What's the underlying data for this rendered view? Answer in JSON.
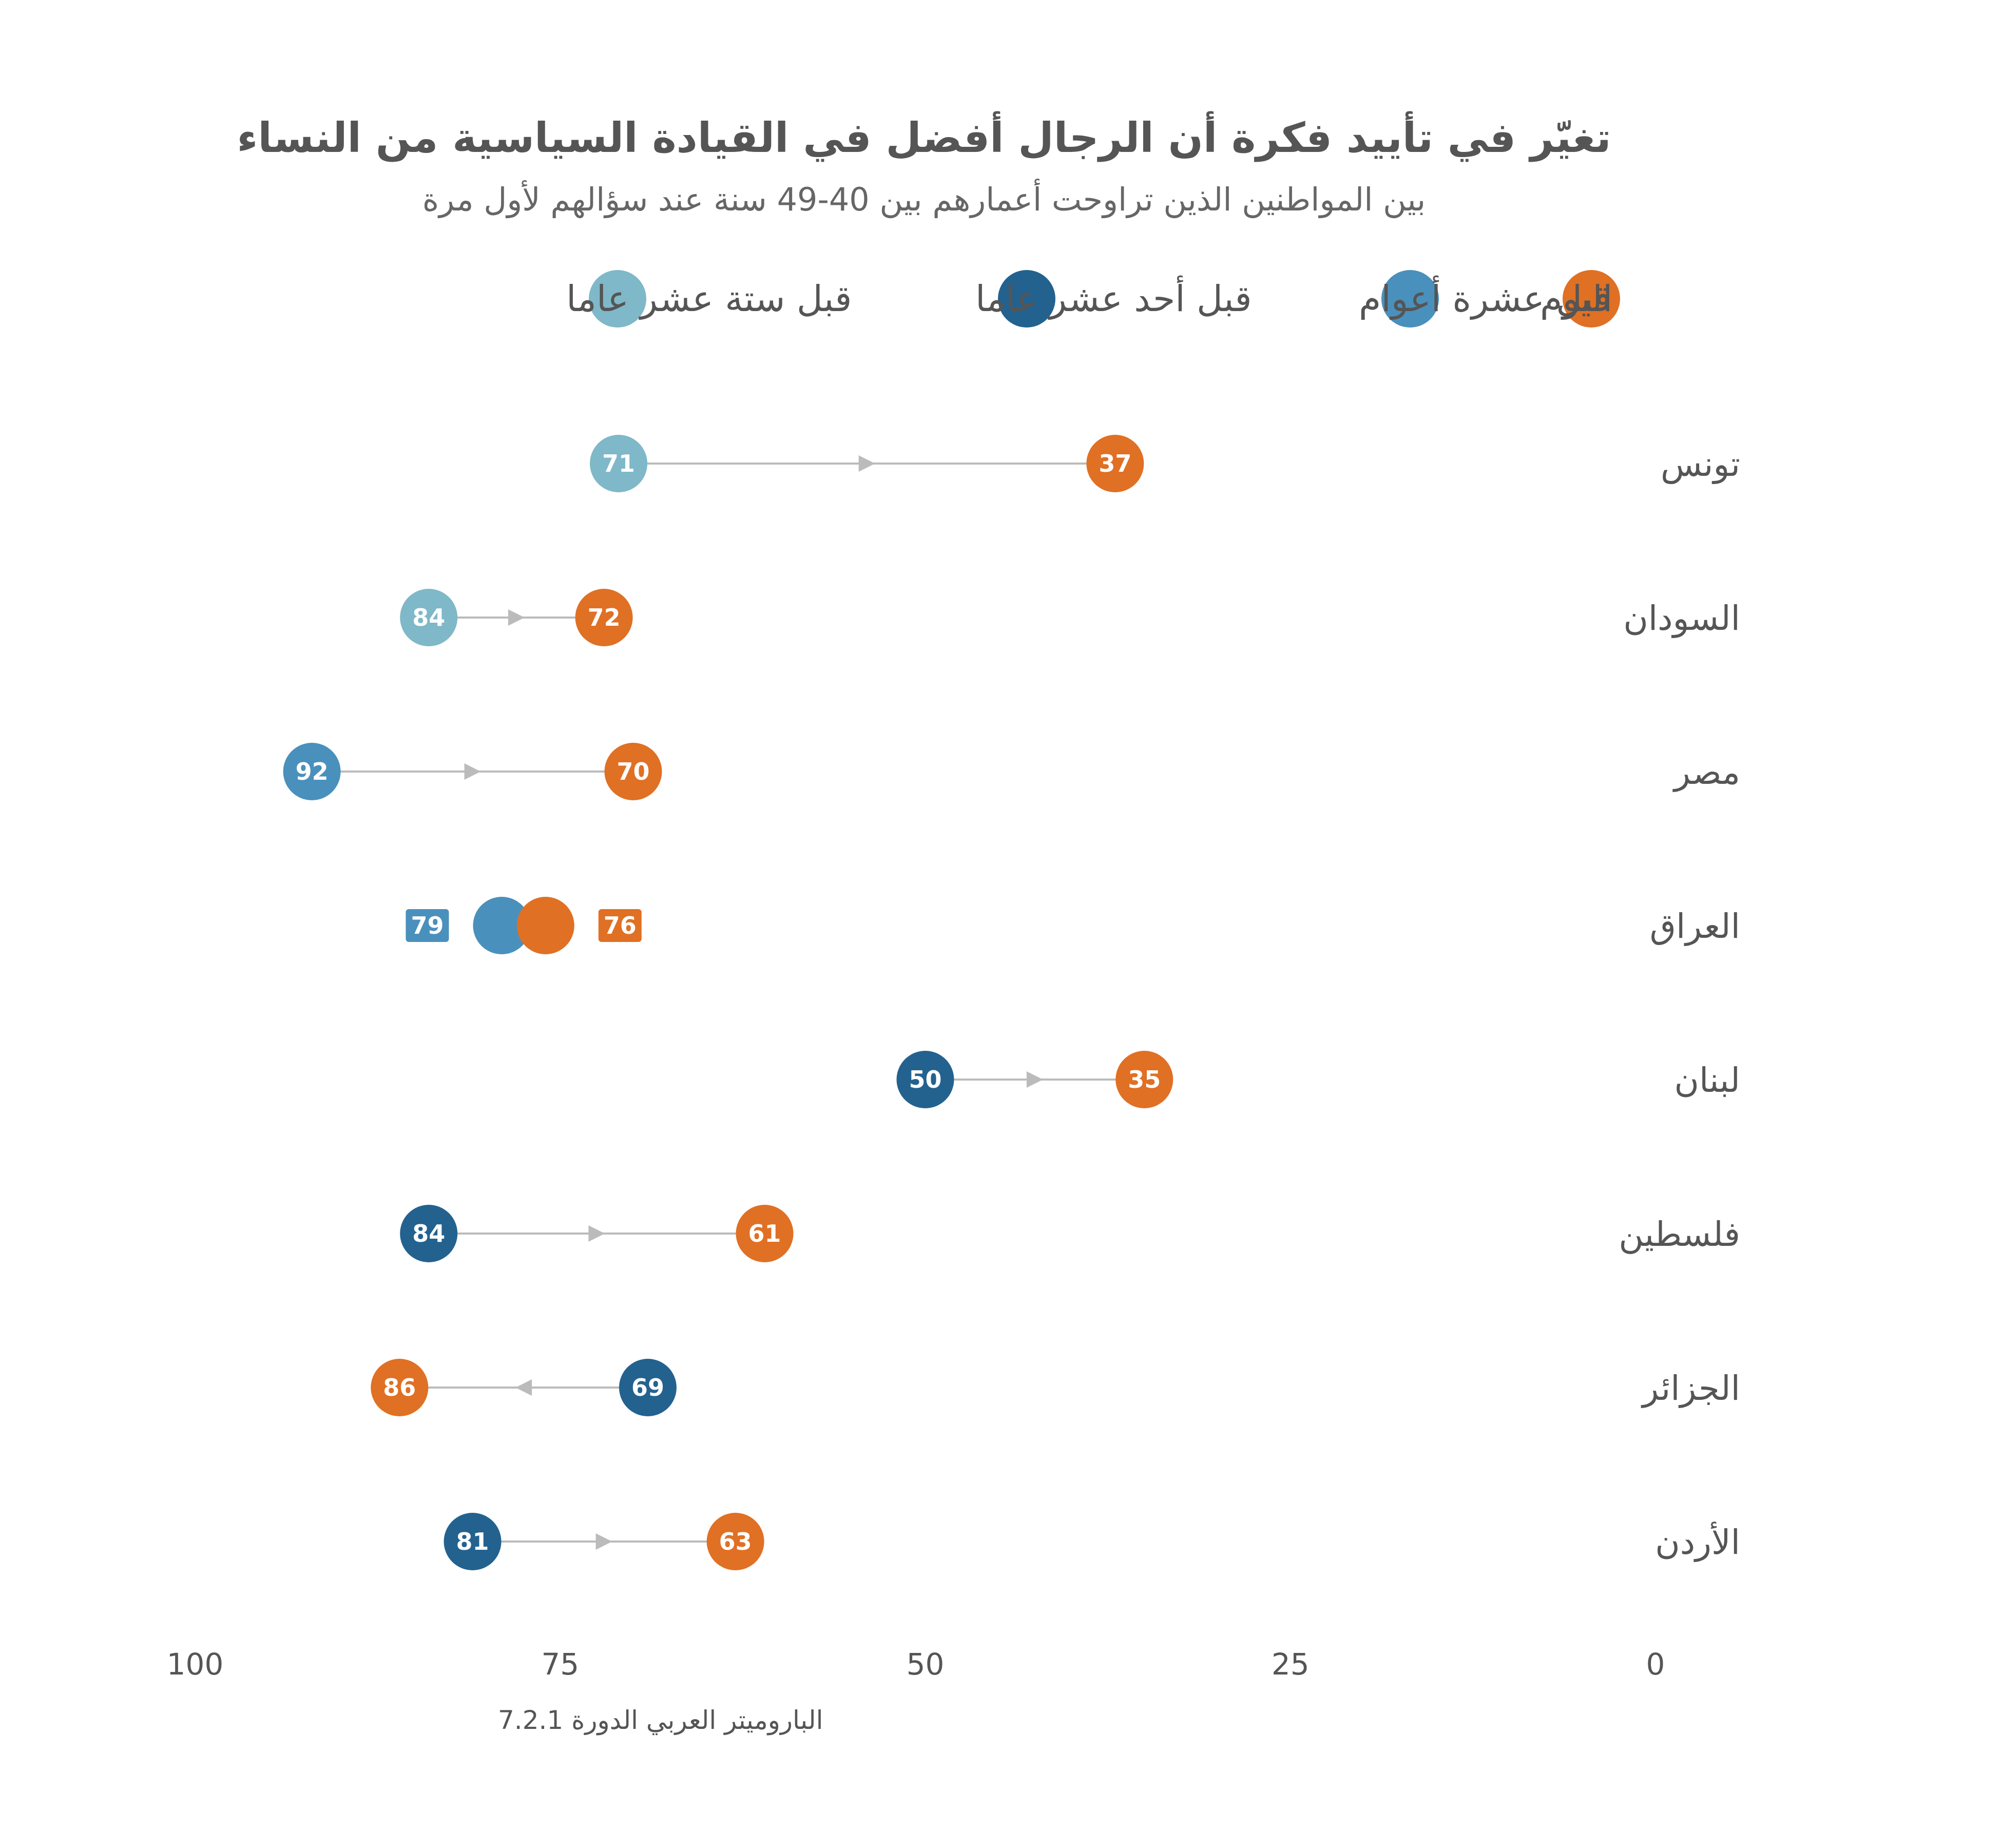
{
  "chart_data": {
    "type": "dumbbell",
    "title": "تغيّر في تأييد فكرة أن الرجال أفضل في القيادة السياسية من النساء",
    "subtitle": "بين المواطنين الذين تراوحت أعمارهم بين 40-49 سنة عند سؤالهم لأول مرة",
    "source": "الباروميتر العربي الدورة 7.2.1",
    "xlim": [
      0,
      100
    ],
    "x_reversed": true,
    "x_ticks": [
      "100",
      "75",
      "50",
      "25",
      "0"
    ],
    "x_tick_values": [
      100,
      75,
      50,
      25,
      0
    ],
    "legend_position": "top",
    "legend": [
      {
        "key": "today",
        "label": "اليوم",
        "color": "#E07024"
      },
      {
        "key": "y10",
        "label": "قبل عشرة أعوام",
        "color": "#4A90BC"
      },
      {
        "key": "y11",
        "label": "قبل أحد عشر عاما",
        "color": "#23628F"
      },
      {
        "key": "y16",
        "label": "قبل ستة عشر عاما",
        "color": "#7FB8C8"
      }
    ],
    "connector_color": "#BBBBBB",
    "rows": [
      {
        "country": "تونس",
        "start": 71,
        "end": 37,
        "start_color": "#7FB8C8"
      },
      {
        "country": "السودان",
        "start": 84,
        "end": 72,
        "start_color": "#7FB8C8"
      },
      {
        "country": "مصر",
        "start": 92,
        "end": 70,
        "start_color": "#4A90BC"
      },
      {
        "country": "العراق",
        "start": 79,
        "end": 76,
        "start_color": "#4A90BC"
      },
      {
        "country": "لبنان",
        "start": 50,
        "end": 35,
        "start_color": "#23628F"
      },
      {
        "country": "فلسطين",
        "start": 84,
        "end": 61,
        "start_color": "#23628F"
      },
      {
        "country": "الجزائر",
        "start": 69,
        "end": 86,
        "start_color": "#23628F"
      },
      {
        "country": "الأردن",
        "start": 81,
        "end": 63,
        "start_color": "#23628F"
      }
    ]
  }
}
